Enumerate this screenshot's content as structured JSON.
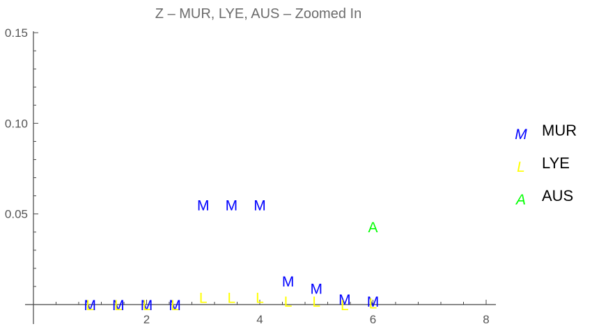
{
  "chart_data": {
    "type": "scatter",
    "title": "Z – MUR, LYE, AUS – Zoomed In",
    "xlabel": "",
    "ylabel": "",
    "xlim": [
      -0.2,
      8.2
    ],
    "ylim": [
      -0.009,
      0.15
    ],
    "x_ticks": [
      {
        "value": 2,
        "label": "2"
      },
      {
        "value": 4,
        "label": "4"
      },
      {
        "value": 6,
        "label": "6"
      },
      {
        "value": 8,
        "label": "8"
      }
    ],
    "y_ticks": [
      {
        "value": 0.05,
        "label": "0.05"
      },
      {
        "value": 0.1,
        "label": "0.10"
      },
      {
        "value": 0.15,
        "label": "0.15"
      }
    ],
    "grid": false,
    "legend_position": "right",
    "series": [
      {
        "name": "MUR",
        "marker": "M",
        "color": "#0000ff",
        "x": [
          1,
          1.5,
          2,
          2.5,
          3,
          3.5,
          4,
          4.5,
          5,
          5.5,
          6
        ],
        "y": [
          0,
          0,
          0,
          0,
          0.055,
          0.055,
          0.055,
          0.013,
          0.009,
          0.003,
          0.002
        ]
      },
      {
        "name": "LYE",
        "marker": "L",
        "color": "#ffff00",
        "x": [
          1,
          1.5,
          2,
          2.5,
          3,
          3.5,
          4,
          4.5,
          5,
          5.5,
          6
        ],
        "y": [
          0,
          0,
          0,
          0,
          0.004,
          0.004,
          0.004,
          0.002,
          0.002,
          0,
          0.001
        ]
      },
      {
        "name": "AUS",
        "marker": "A",
        "color": "#00ff00",
        "x": [
          6
        ],
        "y": [
          0.043
        ]
      }
    ]
  }
}
